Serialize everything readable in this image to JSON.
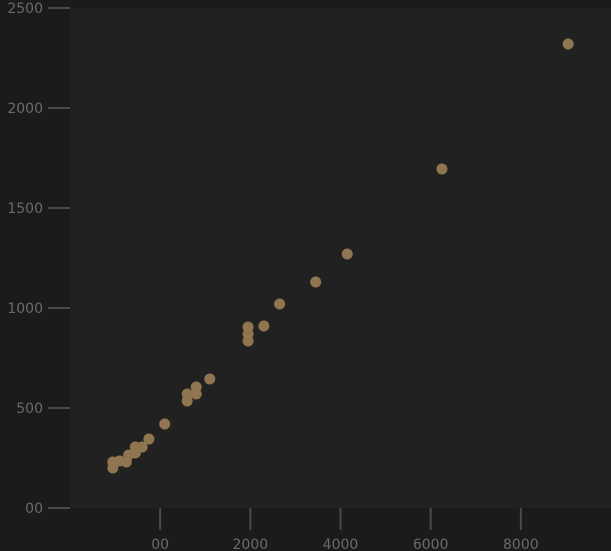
{
  "chart_data": {
    "type": "scatter",
    "title": "",
    "xlabel": "",
    "ylabel": "",
    "xlim": [
      -2000,
      10000
    ],
    "ylim": [
      0,
      2500
    ],
    "grid": false,
    "x_ticks": [
      {
        "value": 0,
        "label": "00"
      },
      {
        "value": 2000,
        "label": "2000"
      },
      {
        "value": 4000,
        "label": "4000"
      },
      {
        "value": 6000,
        "label": "6000"
      },
      {
        "value": 8000,
        "label": "8000"
      }
    ],
    "y_ticks": [
      {
        "value": 0,
        "label": "00"
      },
      {
        "value": 500,
        "label": "500"
      },
      {
        "value": 1000,
        "label": "1000"
      },
      {
        "value": 1500,
        "label": "1500"
      },
      {
        "value": 2000,
        "label": "2000"
      },
      {
        "value": 2500,
        "label": "2500"
      }
    ],
    "colors": {
      "page_background": "#1b1b1b",
      "plot_background": "#222121",
      "points": "#8f7650",
      "ticks": "#4a4a4a",
      "tick_labels": "#6b6b6b"
    },
    "points": [
      {
        "x": -1050,
        "y": 200
      },
      {
        "x": -1050,
        "y": 230
      },
      {
        "x": -900,
        "y": 235
      },
      {
        "x": -750,
        "y": 230
      },
      {
        "x": -700,
        "y": 265
      },
      {
        "x": -550,
        "y": 275
      },
      {
        "x": -550,
        "y": 305
      },
      {
        "x": -400,
        "y": 305
      },
      {
        "x": -250,
        "y": 345
      },
      {
        "x": 100,
        "y": 420
      },
      {
        "x": 600,
        "y": 535
      },
      {
        "x": 600,
        "y": 570
      },
      {
        "x": 800,
        "y": 570
      },
      {
        "x": 800,
        "y": 605
      },
      {
        "x": 1100,
        "y": 645
      },
      {
        "x": 1950,
        "y": 835
      },
      {
        "x": 1950,
        "y": 870
      },
      {
        "x": 1950,
        "y": 905
      },
      {
        "x": 2300,
        "y": 910
      },
      {
        "x": 2650,
        "y": 1020
      },
      {
        "x": 3450,
        "y": 1130
      },
      {
        "x": 4150,
        "y": 1270
      },
      {
        "x": 6250,
        "y": 1695
      },
      {
        "x": 9050,
        "y": 2320
      }
    ]
  }
}
